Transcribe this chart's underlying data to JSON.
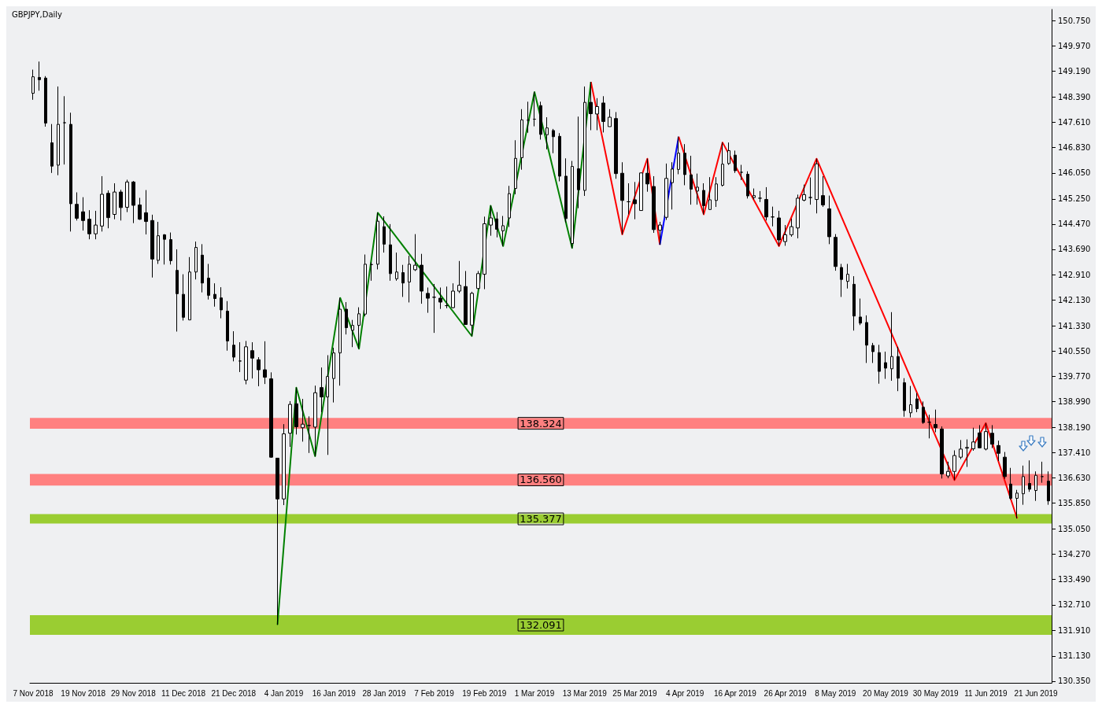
{
  "chart_data": {
    "type": "candlestick",
    "title": "GBPJPY,Daily",
    "categories": [
      "7 Nov 2018",
      null,
      null,
      null,
      null,
      null,
      null,
      null,
      "19 Nov 2018",
      null,
      null,
      null,
      null,
      null,
      null,
      null,
      "29 Nov 2018",
      null,
      null,
      null,
      null,
      null,
      null,
      null,
      "11 Dec 2018",
      null,
      null,
      null,
      null,
      null,
      null,
      null,
      "21 Dec 2018",
      null,
      null,
      null,
      null,
      null,
      null,
      null,
      "4 Jan 2019",
      null,
      null,
      null,
      null,
      null,
      null,
      null,
      "16 Jan 2019",
      null,
      null,
      null,
      null,
      null,
      null,
      null,
      "28 Jan 2019",
      null,
      null,
      null,
      null,
      null,
      null,
      null,
      "7 Feb 2019",
      null,
      null,
      null,
      null,
      null,
      null,
      null,
      "19 Feb 2019",
      null,
      null,
      null,
      null,
      null,
      null,
      null,
      "1 Mar 2019",
      null,
      null,
      null,
      null,
      null,
      null,
      null,
      "13 Mar 2019",
      null,
      null,
      null,
      null,
      null,
      null,
      null,
      "25 Mar 2019",
      null,
      null,
      null,
      null,
      null,
      null,
      null,
      "4 Apr 2019",
      null,
      null,
      null,
      null,
      null,
      null,
      null,
      "16 Apr 2019",
      null,
      null,
      null,
      null,
      null,
      null,
      null,
      "26 Apr 2019",
      null,
      null,
      null,
      null,
      null,
      null,
      null,
      "8 May 2019",
      null,
      null,
      null,
      null,
      null,
      null,
      null,
      "20 May 2019",
      null,
      null,
      null,
      null,
      null,
      null,
      null,
      "30 May 2019",
      null,
      null,
      null,
      null,
      null,
      null,
      null,
      "11 Jun 2019",
      null,
      null,
      null,
      null,
      null,
      null,
      null,
      "21 Jun 2019",
      null,
      null
    ],
    "ohlc": [
      [
        148.51,
        149.24,
        148.31,
        149.02
      ],
      [
        149.0,
        149.49,
        148.59,
        148.93
      ],
      [
        148.98,
        149.04,
        147.48,
        147.59
      ],
      [
        146.98,
        147.56,
        146.05,
        146.26
      ],
      [
        146.29,
        148.72,
        145.98,
        147.55
      ],
      [
        147.6,
        148.42,
        146.31,
        147.6
      ],
      [
        147.55,
        147.91,
        144.24,
        145.1
      ],
      [
        145.08,
        145.45,
        144.58,
        144.65
      ],
      [
        144.85,
        145.3,
        144.27,
        144.58
      ],
      [
        144.62,
        144.9,
        144.0,
        144.17
      ],
      [
        144.17,
        144.88,
        144.0,
        144.44
      ],
      [
        144.41,
        145.95,
        144.24,
        145.39
      ],
      [
        145.42,
        145.51,
        144.34,
        144.67
      ],
      [
        144.77,
        145.73,
        144.62,
        145.46
      ],
      [
        145.46,
        145.53,
        144.58,
        144.98
      ],
      [
        144.99,
        145.84,
        144.84,
        145.77
      ],
      [
        145.77,
        145.8,
        144.5,
        145.05
      ],
      [
        145.06,
        145.28,
        144.6,
        144.62
      ],
      [
        144.82,
        145.52,
        144.15,
        144.55
      ],
      [
        144.58,
        144.76,
        142.82,
        143.39
      ],
      [
        143.35,
        144.54,
        143.24,
        144.11
      ],
      [
        144.14,
        144.16,
        143.22,
        144.0
      ],
      [
        143.99,
        144.21,
        143.22,
        143.34
      ],
      [
        143.04,
        143.69,
        141.15,
        142.32
      ],
      [
        142.3,
        142.92,
        141.49,
        141.59
      ],
      [
        141.51,
        143.45,
        141.51,
        142.99
      ],
      [
        142.99,
        143.93,
        142.76,
        143.75
      ],
      [
        143.51,
        143.85,
        142.36,
        142.65
      ],
      [
        142.8,
        143.24,
        142.14,
        142.27
      ],
      [
        142.3,
        142.64,
        141.92,
        142.17
      ],
      [
        142.19,
        142.52,
        141.56,
        141.82
      ],
      [
        141.78,
        142.09,
        140.56,
        140.86
      ],
      [
        140.73,
        141.16,
        140.23,
        140.36
      ],
      [
        140.24,
        140.82,
        139.9,
        140.24
      ],
      [
        139.65,
        140.86,
        139.52,
        140.68
      ],
      [
        140.56,
        140.82,
        139.7,
        140.33
      ],
      [
        140.28,
        140.36,
        139.46,
        139.97
      ],
      [
        139.97,
        140.85,
        139.53,
        139.74
      ],
      [
        139.69,
        139.89,
        137.25,
        137.27
      ],
      [
        137.24,
        137.24,
        132.091,
        135.98
      ],
      [
        135.98,
        138.29,
        135.79,
        137.99
      ],
      [
        138.01,
        139.0,
        137.59,
        138.9
      ],
      [
        138.92,
        139.42,
        137.97,
        138.21
      ],
      [
        138.18,
        139.07,
        137.75,
        138.29
      ],
      [
        138.25,
        138.53,
        137.4,
        138.25
      ],
      [
        138.2,
        139.48,
        137.3,
        139.26
      ],
      [
        139.42,
        140.04,
        138.66,
        139.13
      ],
      [
        139.13,
        140.42,
        137.34,
        139.76
      ],
      [
        139.7,
        140.65,
        138.96,
        140.49
      ],
      [
        140.49,
        142.19,
        139.48,
        141.84
      ],
      [
        141.84,
        142.06,
        141.06,
        141.27
      ],
      [
        141.19,
        141.51,
        140.67,
        141.34
      ],
      [
        141.34,
        141.9,
        140.62,
        141.7
      ],
      [
        141.69,
        143.53,
        141.62,
        143.23
      ],
      [
        143.22,
        143.29,
        142.72,
        143.22
      ],
      [
        143.23,
        144.82,
        143.07,
        144.56
      ],
      [
        144.39,
        144.71,
        143.59,
        143.85
      ],
      [
        143.83,
        144.47,
        142.72,
        142.94
      ],
      [
        142.78,
        143.59,
        142.72,
        142.99
      ],
      [
        142.97,
        143.21,
        142.22,
        142.65
      ],
      [
        142.68,
        143.49,
        142.05,
        143.23
      ],
      [
        143.06,
        144.16,
        143.02,
        143.2
      ],
      [
        143.2,
        143.55,
        142.01,
        142.4
      ],
      [
        142.33,
        142.51,
        141.73,
        142.18
      ],
      [
        142.21,
        142.62,
        141.11,
        142.21
      ],
      [
        142.18,
        142.51,
        141.85,
        142.06
      ],
      [
        141.95,
        142.54,
        141.87,
        141.95
      ],
      [
        141.89,
        142.64,
        141.87,
        142.4
      ],
      [
        142.4,
        143.33,
        142.34,
        142.58
      ],
      [
        142.54,
        143.02,
        141.37,
        141.37
      ],
      [
        141.35,
        142.38,
        141.01,
        142.33
      ],
      [
        142.48,
        143.02,
        142.45,
        142.94
      ],
      [
        142.92,
        144.7,
        142.46,
        144.48
      ],
      [
        144.44,
        145.04,
        144.11,
        144.66
      ],
      [
        144.63,
        144.84,
        144.06,
        144.31
      ],
      [
        144.26,
        144.72,
        143.79,
        144.42
      ],
      [
        144.66,
        145.65,
        144.38,
        145.41
      ],
      [
        145.57,
        147.06,
        145.39,
        146.5
      ],
      [
        146.52,
        148.02,
        146.15,
        147.69
      ],
      [
        147.68,
        148.25,
        147.29,
        147.68
      ],
      [
        147.71,
        148.55,
        147.49,
        147.71
      ],
      [
        148.13,
        148.25,
        147.08,
        147.24
      ],
      [
        147.23,
        147.77,
        146.78,
        147.44
      ],
      [
        147.36,
        147.41,
        146.66,
        147.17
      ],
      [
        147.18,
        147.28,
        145.79,
        145.95
      ],
      [
        145.95,
        146.5,
        144.52,
        144.64
      ],
      [
        143.87,
        146.42,
        143.73,
        146.25
      ],
      [
        146.18,
        147.79,
        144.96,
        145.53
      ],
      [
        145.51,
        148.72,
        145.34,
        148.23
      ],
      [
        148.23,
        148.86,
        147.37,
        147.88
      ],
      [
        147.87,
        148.36,
        147.37,
        148.1
      ],
      [
        148.21,
        148.42,
        147.3,
        147.64
      ],
      [
        147.48,
        148.02,
        147.48,
        147.77
      ],
      [
        147.73,
        147.93,
        145.87,
        146.03
      ],
      [
        146.04,
        146.38,
        144.15,
        145.2
      ],
      [
        145.16,
        145.73,
        144.77,
        145.16
      ],
      [
        145.22,
        145.77,
        144.62,
        145.1
      ],
      [
        144.89,
        146.06,
        144.88,
        146.05
      ],
      [
        146.04,
        146.49,
        145.47,
        145.71
      ],
      [
        145.63,
        145.95,
        144.2,
        144.3
      ],
      [
        144.28,
        144.54,
        143.83,
        144.44
      ],
      [
        144.68,
        146.34,
        144.6,
        145.88
      ],
      [
        145.75,
        146.38,
        144.92,
        146.17
      ],
      [
        146.16,
        147.17,
        146.01,
        146.66
      ],
      [
        146.66,
        146.94,
        145.67,
        146.0
      ],
      [
        145.99,
        146.58,
        145.07,
        145.55
      ],
      [
        145.49,
        146.03,
        145.07,
        145.61
      ],
      [
        145.51,
        145.73,
        144.77,
        145.04
      ],
      [
        144.92,
        145.92,
        144.92,
        145.22
      ],
      [
        145.2,
        145.92,
        145.0,
        145.71
      ],
      [
        145.67,
        146.99,
        145.63,
        146.32
      ],
      [
        146.34,
        146.99,
        146.3,
        146.74
      ],
      [
        146.6,
        146.74,
        146.05,
        146.12
      ],
      [
        146.07,
        146.3,
        145.83,
        146.07
      ],
      [
        146.01,
        146.1,
        145.26,
        145.34
      ],
      [
        145.29,
        145.57,
        145.23,
        145.35
      ],
      [
        145.27,
        145.49,
        145.15,
        145.27
      ],
      [
        145.23,
        145.61,
        144.58,
        144.69
      ],
      [
        144.69,
        145.01,
        144.4,
        144.69
      ],
      [
        144.66,
        144.88,
        143.79,
        143.98
      ],
      [
        143.93,
        144.44,
        143.8,
        144.14
      ],
      [
        144.14,
        144.64,
        144.08,
        144.39
      ],
      [
        144.35,
        145.38,
        144.03,
        145.27
      ],
      [
        145.21,
        145.69,
        145.17,
        145.38
      ],
      [
        145.29,
        145.91,
        145.07,
        145.29
      ],
      [
        145.23,
        146.49,
        144.8,
        146.33
      ],
      [
        145.35,
        145.95,
        145.0,
        145.06
      ],
      [
        144.94,
        145.35,
        143.85,
        144.08
      ],
      [
        144.06,
        144.16,
        143.03,
        143.16
      ],
      [
        143.13,
        143.24,
        142.22,
        142.76
      ],
      [
        142.7,
        143.24,
        142.48,
        142.92
      ],
      [
        142.61,
        142.86,
        141.18,
        141.63
      ],
      [
        141.6,
        142.17,
        141.35,
        141.41
      ],
      [
        141.43,
        141.65,
        140.18,
        140.73
      ],
      [
        140.72,
        140.8,
        140.18,
        140.53
      ],
      [
        140.5,
        140.74,
        139.54,
        139.92
      ],
      [
        140.19,
        140.53,
        139.69,
        140.02
      ],
      [
        140.0,
        141.75,
        139.63,
        140.38
      ],
      [
        140.38,
        140.68,
        139.31,
        139.71
      ],
      [
        139.57,
        139.71,
        138.52,
        138.71
      ],
      [
        138.64,
        139.47,
        138.5,
        138.89
      ],
      [
        139.07,
        139.25,
        138.66,
        138.77
      ],
      [
        138.81,
        138.99,
        138.3,
        138.34
      ],
      [
        138.35,
        138.58,
        137.85,
        138.35
      ],
      [
        138.28,
        138.74,
        138.04,
        138.18
      ],
      [
        138.14,
        138.22,
        136.61,
        136.75
      ],
      [
        136.69,
        137.13,
        136.62,
        136.83
      ],
      [
        136.83,
        137.48,
        136.56,
        137.32
      ],
      [
        137.27,
        137.8,
        137.21,
        137.52
      ],
      [
        137.55,
        137.82,
        136.97,
        137.57
      ],
      [
        137.53,
        138.18,
        137.47,
        137.74
      ],
      [
        138.02,
        138.26,
        137.55,
        137.56
      ],
      [
        137.52,
        138.324,
        137.48,
        138.06
      ],
      [
        138.01,
        138.26,
        137.55,
        137.67
      ],
      [
        137.63,
        137.78,
        137.15,
        137.39
      ],
      [
        137.27,
        137.43,
        136.6,
        136.67
      ],
      [
        136.44,
        136.94,
        135.96,
        136.0
      ],
      [
        136.0,
        136.26,
        135.377,
        136.16
      ],
      [
        136.14,
        137.01,
        135.8,
        136.67
      ],
      [
        136.46,
        137.17,
        136.2,
        136.28
      ],
      [
        136.24,
        136.83,
        135.92,
        136.71
      ],
      [
        136.67,
        137.13,
        136.48,
        136.67
      ],
      [
        136.53,
        136.83,
        135.8,
        135.92
      ]
    ],
    "series": [
      {
        "type": "line",
        "color": "#008000",
        "values": [
          null,
          null,
          null,
          null,
          null,
          null,
          null,
          null,
          null,
          null,
          null,
          null,
          null,
          null,
          null,
          null,
          null,
          null,
          null,
          null,
          null,
          null,
          null,
          null,
          null,
          null,
          null,
          null,
          null,
          null,
          null,
          null,
          null,
          null,
          null,
          null,
          null,
          null,
          null,
          132.091,
          null,
          null,
          139.42,
          null,
          null,
          137.3,
          null,
          null,
          null,
          142.19,
          null,
          null,
          140.62,
          null,
          null,
          144.82,
          null,
          null,
          null,
          null,
          null,
          null,
          null,
          null,
          null,
          null,
          null,
          null,
          null,
          null,
          141.01,
          null,
          null,
          145.04,
          null,
          143.79,
          null,
          null,
          null,
          null,
          148.55,
          null,
          null,
          null,
          null,
          null,
          143.73,
          null,
          null,
          148.86,
          null,
          null,
          null,
          null,
          null,
          null,
          null,
          null,
          null,
          null,
          null,
          null,
          null,
          null,
          null,
          null,
          null,
          null,
          null,
          null,
          null,
          null,
          null,
          null,
          null,
          null,
          null,
          null,
          null,
          null,
          null,
          null,
          null,
          null,
          null,
          null,
          null,
          null,
          null,
          null,
          null,
          null,
          null,
          null,
          null,
          null,
          null,
          null,
          null,
          null,
          null,
          null,
          null,
          null,
          null,
          null,
          null,
          null,
          null,
          null,
          null,
          null,
          null,
          null,
          null,
          null,
          null,
          null,
          null,
          null,
          null,
          null,
          null
        ]
      },
      {
        "type": "line",
        "color": "#ff0000",
        "values": [
          null,
          null,
          null,
          null,
          null,
          null,
          null,
          null,
          null,
          null,
          null,
          null,
          null,
          null,
          null,
          null,
          null,
          null,
          null,
          null,
          null,
          null,
          null,
          null,
          null,
          null,
          null,
          null,
          null,
          null,
          null,
          null,
          null,
          null,
          null,
          null,
          null,
          null,
          null,
          null,
          null,
          null,
          null,
          null,
          null,
          null,
          null,
          null,
          null,
          null,
          null,
          null,
          null,
          null,
          null,
          null,
          null,
          null,
          null,
          null,
          null,
          null,
          null,
          null,
          null,
          null,
          null,
          null,
          null,
          null,
          null,
          null,
          null,
          null,
          null,
          null,
          null,
          null,
          null,
          null,
          null,
          null,
          null,
          null,
          null,
          null,
          null,
          null,
          null,
          148.86,
          null,
          null,
          null,
          null,
          144.15,
          null,
          null,
          null,
          146.49,
          null,
          143.83,
          null,
          null,
          null,
          null,
          null,
          null,
          null,
          null,
          null,
          null,
          null,
          null,
          null,
          null,
          null,
          null,
          null,
          null,
          null,
          null,
          null,
          null,
          null,
          null,
          null,
          null,
          null,
          null,
          null,
          null,
          null,
          null,
          null,
          null,
          null,
          null,
          null,
          null,
          null,
          null,
          null,
          null,
          null,
          null,
          null,
          null,
          null,
          null,
          null,
          null,
          null,
          null,
          null,
          null,
          null,
          null,
          null,
          null,
          null,
          null,
          null,
          null
        ]
      },
      {
        "type": "line",
        "color": "#0000ff",
        "values": [
          null,
          null,
          null,
          null,
          null,
          null,
          null,
          null,
          null,
          null,
          null,
          null,
          null,
          null,
          null,
          null,
          null,
          null,
          null,
          null,
          null,
          null,
          null,
          null,
          null,
          null,
          null,
          null,
          null,
          null,
          null,
          null,
          null,
          null,
          null,
          null,
          null,
          null,
          null,
          null,
          null,
          null,
          null,
          null,
          null,
          null,
          null,
          null,
          null,
          null,
          null,
          null,
          null,
          null,
          null,
          null,
          null,
          null,
          null,
          null,
          null,
          null,
          null,
          null,
          null,
          null,
          null,
          null,
          null,
          null,
          null,
          null,
          null,
          null,
          null,
          null,
          null,
          null,
          null,
          null,
          null,
          null,
          null,
          null,
          null,
          null,
          null,
          null,
          null,
          null,
          null,
          null,
          null,
          null,
          null,
          null,
          null,
          null,
          null,
          null,
          143.83,
          null,
          null,
          147.17,
          null,
          null,
          null,
          null,
          null,
          null,
          null,
          null,
          null,
          null,
          null,
          null,
          null,
          null,
          null,
          null,
          null,
          null,
          null,
          null,
          null,
          null,
          null,
          null,
          null,
          null,
          null,
          null,
          null,
          null,
          null,
          null,
          null,
          null,
          null,
          null,
          null,
          null,
          null,
          null,
          null,
          null,
          null,
          null,
          null,
          null,
          null,
          null,
          null,
          null,
          null,
          null,
          null,
          null,
          null,
          null,
          null,
          null,
          null
        ]
      },
      {
        "type": "line",
        "color": "#ff0000",
        "values": [
          null,
          null,
          null,
          null,
          null,
          null,
          null,
          null,
          null,
          null,
          null,
          null,
          null,
          null,
          null,
          null,
          null,
          null,
          null,
          null,
          null,
          null,
          null,
          null,
          null,
          null,
          null,
          null,
          null,
          null,
          null,
          null,
          null,
          null,
          null,
          null,
          null,
          null,
          null,
          null,
          null,
          null,
          null,
          null,
          null,
          null,
          null,
          null,
          null,
          null,
          null,
          null,
          null,
          null,
          null,
          null,
          null,
          null,
          null,
          null,
          null,
          null,
          null,
          null,
          null,
          null,
          null,
          null,
          null,
          null,
          null,
          null,
          null,
          null,
          null,
          null,
          null,
          null,
          null,
          null,
          null,
          null,
          null,
          null,
          null,
          null,
          null,
          null,
          null,
          null,
          null,
          null,
          null,
          null,
          null,
          null,
          null,
          null,
          null,
          null,
          null,
          null,
          null,
          147.17,
          null,
          null,
          null,
          144.77,
          null,
          null,
          146.99,
          null,
          null,
          null,
          null,
          null,
          null,
          null,
          null,
          143.79,
          null,
          null,
          null,
          null,
          null,
          146.49,
          null,
          null,
          null,
          null,
          null,
          null,
          null,
          null,
          null,
          null,
          null,
          null,
          null,
          null,
          null,
          null,
          null,
          null,
          null,
          null,
          null,
          136.56,
          null,
          null,
          null,
          null,
          138.324,
          null,
          null,
          null,
          null,
          135.377,
          null,
          null,
          null,
          null,
          null
        ]
      }
    ],
    "ylim": [
      130.3,
      151.1
    ],
    "yticks": [
      {
        "value": 130.35,
        "label": "130.350"
      },
      {
        "value": 131.13,
        "label": "131.130"
      },
      {
        "value": 131.91,
        "label": "131.910"
      },
      {
        "value": 132.71,
        "label": "132.710"
      },
      {
        "value": 133.49,
        "label": "133.490"
      },
      {
        "value": 134.27,
        "label": "134.270"
      },
      {
        "value": 135.05,
        "label": "135.050"
      },
      {
        "value": 135.85,
        "label": "135.850"
      },
      {
        "value": 136.63,
        "label": "136.630"
      },
      {
        "value": 137.41,
        "label": "137.410"
      },
      {
        "value": 138.19,
        "label": "138.190"
      },
      {
        "value": 138.99,
        "label": "138.990"
      },
      {
        "value": 139.77,
        "label": "139.770"
      },
      {
        "value": 140.55,
        "label": "140.550"
      },
      {
        "value": 141.33,
        "label": "141.330"
      },
      {
        "value": 142.13,
        "label": "142.130"
      },
      {
        "value": 142.91,
        "label": "142.910"
      },
      {
        "value": 143.69,
        "label": "143.690"
      },
      {
        "value": 144.47,
        "label": "144.470"
      },
      {
        "value": 145.25,
        "label": "145.250"
      },
      {
        "value": 146.05,
        "label": "146.050"
      },
      {
        "value": 146.83,
        "label": "146.830"
      },
      {
        "value": 147.61,
        "label": "147.610"
      },
      {
        "value": 148.39,
        "label": "148.390"
      },
      {
        "value": 149.19,
        "label": "149.190"
      },
      {
        "value": 149.97,
        "label": "149.970"
      },
      {
        "value": 150.75,
        "label": "150.750"
      }
    ],
    "bands": [
      {
        "axis": "y",
        "from": 131.78,
        "to": 132.39,
        "label": "132.091",
        "color": "#9acd32"
      },
      {
        "axis": "y",
        "from": 138.15,
        "to": 138.48,
        "label": "138.324",
        "color": "#ff8080"
      },
      {
        "axis": "y",
        "from": 136.39,
        "to": 136.75,
        "label": "136.560",
        "color": "#ff8080"
      },
      {
        "axis": "y",
        "from": 135.22,
        "to": 135.51,
        "label": "135.377",
        "color": "#9acd32"
      }
    ]
  }
}
